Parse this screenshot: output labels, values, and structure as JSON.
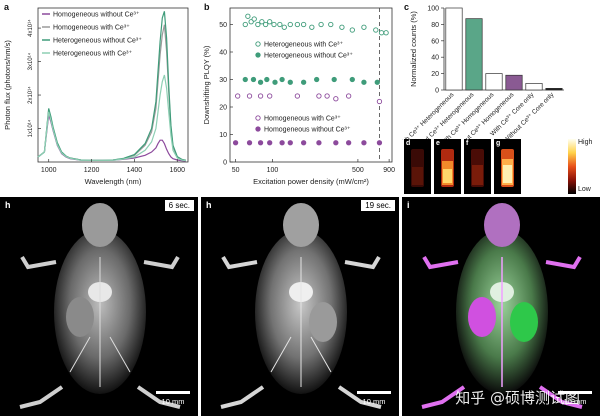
{
  "panels": {
    "a": {
      "label": "a",
      "ylabel": "Photon flux (photons/nm/s)",
      "xlabel": "Wavelength (nm)",
      "yticks": [
        "1x10¹⁴",
        "2x10¹⁴",
        "3x10¹⁴",
        "4x10¹⁴"
      ],
      "xticks": [
        "1000",
        "1200",
        "1400",
        "1600"
      ]
    },
    "b": {
      "label": "b",
      "ylabel": "Downshifting PLQY (%)",
      "xlabel": "Excitation power density (mW/cm²)",
      "yticks": [
        "0",
        "10",
        "20",
        "30",
        "40",
        "50"
      ],
      "xticks": [
        "50",
        "100",
        "500",
        "900"
      ]
    },
    "c": {
      "label": "c",
      "ylabel": "Normalized counts (%)",
      "yticks": [
        "0",
        "20",
        "40",
        "60",
        "80",
        "100"
      ],
      "colorbar_high": "High",
      "colorbar_low": "Low"
    },
    "d": {
      "label": "d"
    },
    "e": {
      "label": "e"
    },
    "f": {
      "label": "f"
    },
    "g": {
      "label": "g"
    },
    "h1": {
      "label": "h",
      "time": "6 sec.",
      "scale": "10 mm"
    },
    "h2": {
      "label": "h",
      "time": "19 sec.",
      "scale": "10 mm"
    },
    "i": {
      "label": "i",
      "scale": "10 mm"
    }
  },
  "watermark": "知乎 @硕博测试图",
  "colors": {
    "gray": "#9a9a9a",
    "purple": "#8c4a9c",
    "green": "#3f9c7a",
    "lightgreen": "#8dcfb3"
  },
  "chart_data": [
    {
      "type": "line",
      "title": "",
      "xlabel": "Wavelength (nm)",
      "ylabel": "Photon flux (photons/nm/s)",
      "xlim": [
        950,
        1650
      ],
      "ylim": [
        0,
        460000000000000.0
      ],
      "x": [
        950,
        980,
        1000,
        1010,
        1020,
        1040,
        1060,
        1080,
        1100,
        1150,
        1200,
        1250,
        1300,
        1350,
        1400,
        1450,
        1480,
        1500,
        1510,
        1520,
        1530,
        1540,
        1550,
        1560,
        1570,
        1580,
        1600,
        1620,
        1640
      ],
      "legend": [
        "Homogeneous without Ce³⁺",
        "Homogeneous with Ce³⁺",
        "Heterogeneous without Ce³⁺",
        "Heterogeneous with Ce³⁺"
      ],
      "series": [
        {
          "name": "Homogeneous without Ce³⁺",
          "color": "#8c4a9c",
          "values": [
            15000000000000.0,
            30000000000000.0,
            140000000000000.0,
            120000000000000.0,
            95000000000000.0,
            50000000000000.0,
            25000000000000.0,
            15000000000000.0,
            10000000000000.0,
            5000000000000.0,
            5000000000000.0,
            5000000000000.0,
            5000000000000.0,
            8000000000000.0,
            12000000000000.0,
            20000000000000.0,
            30000000000000.0,
            42000000000000.0,
            55000000000000.0,
            65000000000000.0,
            65000000000000.0,
            55000000000000.0,
            38000000000000.0,
            25000000000000.0,
            15000000000000.0,
            10000000000000.0,
            6000000000000.0,
            4000000000000.0,
            3000000000000.0
          ]
        },
        {
          "name": "Homogeneous with Ce³⁺",
          "color": "#9a9a9a",
          "values": [
            15000000000000.0,
            30000000000000.0,
            155000000000000.0,
            130000000000000.0,
            100000000000000.0,
            55000000000000.0,
            28000000000000.0,
            17000000000000.0,
            12000000000000.0,
            6000000000000.0,
            5000000000000.0,
            5000000000000.0,
            6000000000000.0,
            10000000000000.0,
            20000000000000.0,
            50000000000000.0,
            90000000000000.0,
            160000000000000.0,
            240000000000000.0,
            320000000000000.0,
            380000000000000.0,
            410000000000000.0,
            330000000000000.0,
            210000000000000.0,
            100000000000000.0,
            45000000000000.0,
            15000000000000.0,
            8000000000000.0,
            5000000000000.0
          ]
        },
        {
          "name": "Heterogeneous without Ce³⁺",
          "color": "#3f9c7a",
          "values": [
            15000000000000.0,
            30000000000000.0,
            160000000000000.0,
            135000000000000.0,
            105000000000000.0,
            58000000000000.0,
            30000000000000.0,
            18000000000000.0,
            12000000000000.0,
            6000000000000.0,
            5000000000000.0,
            5000000000000.0,
            6000000000000.0,
            11000000000000.0,
            22000000000000.0,
            55000000000000.0,
            100000000000000.0,
            180000000000000.0,
            270000000000000.0,
            360000000000000.0,
            430000000000000.0,
            450000000000000.0,
            370000000000000.0,
            230000000000000.0,
            110000000000000.0,
            50000000000000.0,
            16000000000000.0,
            8000000000000.0,
            5000000000000.0
          ]
        },
        {
          "name": "Heterogeneous with Ce³⁺",
          "color": "#8dcfb3",
          "values": [
            15000000000000.0,
            30000000000000.0,
            150000000000000.0,
            125000000000000.0,
            98000000000000.0,
            52000000000000.0,
            27000000000000.0,
            16000000000000.0,
            11000000000000.0,
            5000000000000.0,
            5000000000000.0,
            5000000000000.0,
            5000000000000.0,
            9000000000000.0,
            15000000000000.0,
            35000000000000.0,
            60000000000000.0,
            100000000000000.0,
            150000000000000.0,
            200000000000000.0,
            240000000000000.0,
            260000000000000.0,
            220000000000000.0,
            150000000000000.0,
            80000000000000.0,
            35000000000000.0,
            12000000000000.0,
            6000000000000.0,
            4000000000000.0
          ]
        }
      ]
    },
    {
      "type": "scatter",
      "title": "",
      "xlabel": "Excitation power density (mW/cm²)",
      "ylabel": "Downshifting PLQY (%)",
      "xscale": "log",
      "xlim": [
        45,
        950
      ],
      "ylim": [
        0,
        56
      ],
      "vline_x": 750,
      "legend": [
        "Heterogeneous with Ce³⁺",
        "Heterogeneous without Ce³⁺",
        "Homogeneous with Ce³⁺",
        "Homogeneous without Ce³⁺"
      ],
      "series": [
        {
          "name": "Heterogeneous with Ce³⁺",
          "color": "#3f9c7a",
          "filled": false,
          "x": [
            60,
            63,
            67,
            71,
            76,
            82,
            88,
            95,
            103,
            115,
            125,
            140,
            160,
            180,
            210,
            250,
            300,
            370,
            450,
            560,
            700,
            780,
            850
          ],
          "y": [
            50,
            53,
            51,
            52,
            50,
            51,
            50,
            51,
            50,
            50,
            49,
            50,
            50,
            50,
            49,
            50,
            50,
            49,
            48,
            49,
            48,
            47,
            47
          ]
        },
        {
          "name": "Heterogeneous without Ce³⁺",
          "color": "#3f9c7a",
          "filled": true,
          "x": [
            60,
            70,
            80,
            90,
            105,
            120,
            140,
            180,
            230,
            320,
            450,
            560,
            720
          ],
          "y": [
            30,
            30,
            29,
            30,
            29,
            30,
            29,
            29,
            30,
            30,
            30,
            29,
            29
          ]
        },
        {
          "name": "Homogeneous with Ce³⁺",
          "color": "#8c4a9c",
          "filled": false,
          "x": [
            52,
            65,
            80,
            95,
            160,
            240,
            280,
            330,
            420,
            750
          ],
          "y": [
            24,
            24,
            24,
            24,
            24,
            24,
            24,
            23,
            24,
            22
          ]
        },
        {
          "name": "Homogeneous without Ce³⁺",
          "color": "#8c4a9c",
          "filled": true,
          "x": [
            50,
            65,
            80,
            95,
            120,
            140,
            180,
            240,
            330,
            420,
            560,
            750
          ],
          "y": [
            7,
            7,
            7,
            7,
            7,
            7,
            7,
            7,
            7,
            7,
            7,
            7
          ]
        }
      ]
    },
    {
      "type": "bar",
      "title": "",
      "ylabel": "Normalized counts (%)",
      "ylim": [
        0,
        100
      ],
      "categories": [
        "With Ce³⁺ Heterogeneous",
        "Without Ce³⁺ Heterogeneous",
        "With Ce³⁺ Homogeneous",
        "Without Ce³⁺ Homogeneous",
        "With Ce³⁺ Core only",
        "Without Ce³⁺ Core only"
      ],
      "values": [
        100,
        87,
        20,
        18,
        8,
        2
      ],
      "colors": [
        "#ffffff",
        "#5aa688",
        "#ffffff",
        "#8a5a93",
        "#ffffff",
        "#1a1a1a"
      ]
    }
  ]
}
